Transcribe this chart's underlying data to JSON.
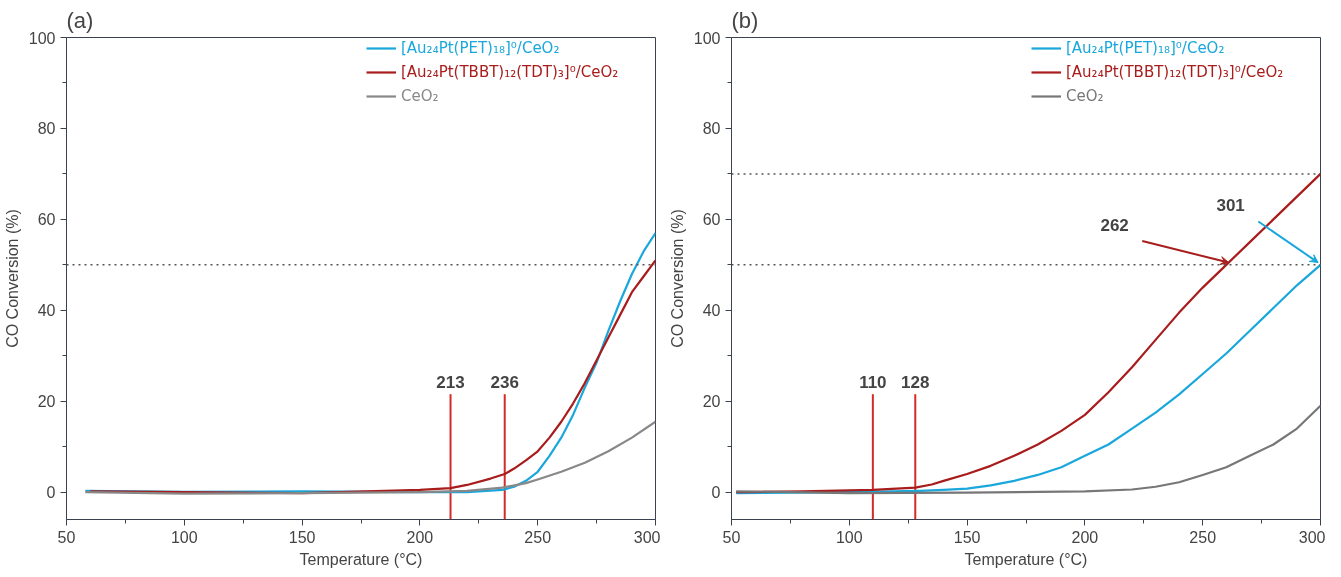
{
  "chart_data": [
    {
      "type": "line",
      "title": "(a)",
      "xlabel": "Temperature (°C)",
      "ylabel": "CO Conversion (%)",
      "xlim": [
        50,
        300
      ],
      "ylim": [
        -6,
        100
      ],
      "xticks": [
        50,
        {
          "value": 75,
          "label": null
        },
        100,
        {
          "value": 125,
          "label": null
        },
        150,
        {
          "value": 175,
          "label": null
        },
        200,
        {
          "value": 225,
          "label": null
        },
        250,
        {
          "value": 275,
          "label": null
        },
        300
      ],
      "yticks": [
        0,
        {
          "value": 10,
          "label": null
        },
        20,
        {
          "value": 30,
          "label": null
        },
        40,
        {
          "value": 50,
          "label": null
        },
        60,
        {
          "value": 70,
          "label": null
        },
        80,
        {
          "value": 90,
          "label": null
        },
        100
      ],
      "grid": false,
      "legend": "top right",
      "line_style": "solid",
      "series": [
        {
          "name": "[Au₂₄Pt(PET)₁₈]⁰/CeO₂",
          "color": "#1aa7db",
          "x": [
            58,
            100,
            150,
            200,
            220,
            235,
            240,
            245,
            250,
            255,
            260,
            265,
            270,
            275,
            280,
            285,
            290,
            295,
            300
          ],
          "values": [
            0.3,
            0.1,
            0.2,
            0,
            0,
            0.5,
            1.2,
            2.5,
            4.5,
            8,
            12,
            17,
            23,
            28.5,
            35.5,
            42,
            48,
            53,
            57
          ]
        },
        {
          "name": "[Au₂₄Pt(TBBT)₁₂(TDT)₃]⁰/CeO₂",
          "color": "#a81c1c",
          "x": [
            60,
            100,
            150,
            185,
            200,
            213,
            220,
            230,
            236,
            240,
            245,
            250,
            255,
            260,
            265,
            270,
            275,
            280,
            285,
            290,
            295,
            300
          ],
          "values": [
            0.2,
            0,
            -0.2,
            0.3,
            0.5,
            0.9,
            1.6,
            3,
            4,
            5.2,
            7,
            9,
            12,
            15.5,
            19.5,
            24,
            29,
            34,
            39,
            44,
            47.5,
            51
          ]
        },
        {
          "name": "CeO₂",
          "color": "#888888",
          "x": [
            58,
            100,
            150,
            200,
            220,
            235,
            245,
            250,
            260,
            270,
            280,
            290,
            300
          ],
          "values": [
            0,
            -0.3,
            -0.2,
            0,
            0.3,
            1,
            2,
            2.8,
            4.5,
            6.5,
            9,
            12,
            15.5
          ]
        }
      ],
      "ref_lines": [
        {
          "axis": "y",
          "value": 50,
          "color": "#555555",
          "line_style": "dotted"
        },
        {
          "axis": "x",
          "value": 213,
          "label": "213",
          "color": "#d42a2a",
          "line_style": "solid"
        },
        {
          "axis": "x",
          "value": 236,
          "label": "236",
          "color": "#d42a2a",
          "line_style": "solid"
        }
      ]
    },
    {
      "type": "line",
      "title": "(b)",
      "xlabel": "Temperature (°C)",
      "ylabel": "CO Conversion (%)",
      "xlim": [
        50,
        300
      ],
      "ylim": [
        -6,
        100
      ],
      "xticks": [
        50,
        {
          "value": 75,
          "label": null
        },
        100,
        {
          "value": 125,
          "label": null
        },
        150,
        {
          "value": 175,
          "label": null
        },
        200,
        {
          "value": 225,
          "label": null
        },
        250,
        {
          "value": 275,
          "label": null
        },
        300
      ],
      "yticks": [
        0,
        {
          "value": 10,
          "label": null
        },
        20,
        {
          "value": 30,
          "label": null
        },
        40,
        {
          "value": 50,
          "label": null
        },
        60,
        {
          "value": 70,
          "label": null
        },
        80,
        {
          "value": 90,
          "label": null
        },
        100
      ],
      "grid": false,
      "legend": "top right",
      "line_style": "solid",
      "series": [
        {
          "name": "[Au₂₄Pt(PET)₁₈]⁰/CeO₂",
          "color": "#1aa7db",
          "x": [
            52,
            100,
            130,
            140,
            150,
            160,
            170,
            180,
            190,
            200,
            210,
            220,
            230,
            240,
            250,
            260,
            270,
            280,
            290,
            300
          ],
          "values": [
            -0.2,
            0,
            0.3,
            0.5,
            0.8,
            1.5,
            2.5,
            3.8,
            5.5,
            8,
            10.5,
            14,
            17.5,
            21.5,
            26,
            30.5,
            35.5,
            40.5,
            45.5,
            50
          ]
        },
        {
          "name": "[Au₂₄Pt(TBBT)₁₂(TDT)₃]⁰/CeO₂",
          "color": "#a81c1c",
          "x": [
            52,
            80,
            100,
            110,
            120,
            128,
            135,
            140,
            150,
            160,
            170,
            180,
            190,
            200,
            210,
            220,
            230,
            240,
            250,
            260,
            270,
            280,
            290,
            300
          ],
          "values": [
            0,
            0.2,
            0.4,
            0.5,
            0.8,
            1,
            1.7,
            2.5,
            4,
            5.8,
            8,
            10.5,
            13.5,
            17,
            22,
            27.5,
            33.5,
            39.5,
            45,
            50,
            55,
            60,
            65,
            70
          ]
        },
        {
          "name": "CeO₂",
          "color": "#777777",
          "x": [
            52,
            100,
            150,
            200,
            220,
            230,
            240,
            250,
            260,
            270,
            280,
            290,
            300
          ],
          "values": [
            0.2,
            -0.2,
            -0.1,
            0.2,
            0.6,
            1.2,
            2.2,
            3.8,
            5.5,
            8,
            10.5,
            14,
            19
          ]
        }
      ],
      "ref_lines": [
        {
          "axis": "y",
          "value": 50,
          "color": "#555555",
          "line_style": "dotted"
        },
        {
          "axis": "y",
          "value": 70,
          "color": "#555555",
          "line_style": "dotted"
        },
        {
          "axis": "x",
          "value": 110,
          "label": "110",
          "color": "#d42a2a",
          "line_style": "solid"
        },
        {
          "axis": "x",
          "value": 128,
          "label": "128",
          "color": "#d42a2a",
          "line_style": "solid"
        }
      ],
      "annotations": [
        {
          "text": "262",
          "x": 262,
          "y": 50
        },
        {
          "text": "301",
          "x": 300,
          "y": 50
        }
      ]
    }
  ]
}
